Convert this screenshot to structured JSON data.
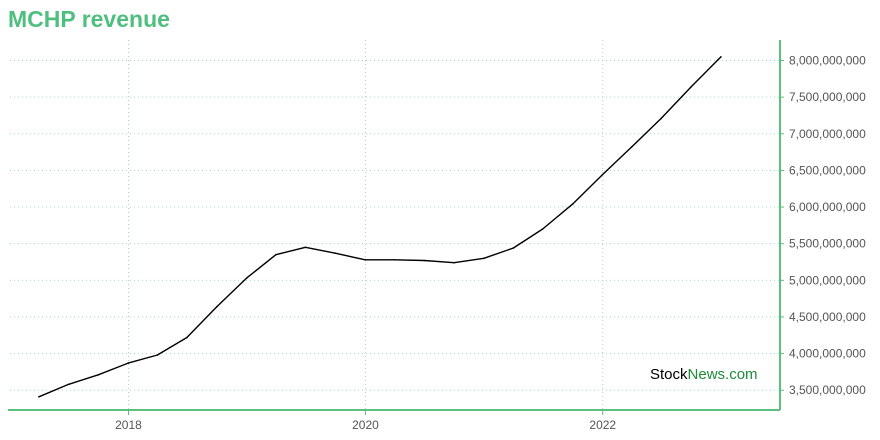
{
  "title": "MCHP revenue",
  "watermark": {
    "part1": "Stock",
    "part2": "News.com"
  },
  "colors": {
    "title": "#4fbf7f",
    "axis": "#5cbf7f",
    "grid": "#9fd9c6",
    "line": "#000000",
    "watermark_part1": "#000000",
    "watermark_part2": "#1f8a3a"
  },
  "chart_data": {
    "type": "line",
    "title": "MCHP revenue",
    "xlabel": "",
    "ylabel": "",
    "x": [
      "2017-03-31",
      "2017-06-30",
      "2017-09-30",
      "2017-12-31",
      "2018-03-31",
      "2018-06-30",
      "2018-09-30",
      "2018-12-31",
      "2019-03-31",
      "2019-06-30",
      "2019-09-30",
      "2019-12-31",
      "2020-03-31",
      "2020-06-30",
      "2020-09-30",
      "2020-12-31",
      "2021-03-31",
      "2021-06-30",
      "2021-09-30",
      "2021-12-31",
      "2022-03-31",
      "2022-06-30",
      "2022-09-30",
      "2022-12-31"
    ],
    "series": [
      {
        "values": [
          3410000000,
          3580000000,
          3710000000,
          3870000000,
          3980000000,
          4220000000,
          4640000000,
          5030000000,
          5350000000,
          5450000000,
          5370000000,
          5280000000,
          5280000000,
          5270000000,
          5240000000,
          5300000000,
          5440000000,
          5700000000,
          6040000000,
          6440000000,
          6820000000,
          7210000000,
          7640000000,
          8050000000
        ]
      }
    ],
    "xlim": [
      "2017-01-01",
      "2023-07-01"
    ],
    "ylim": [
      3230000000,
      8280000000
    ],
    "x_ticks": [
      "2018",
      "2020",
      "2022"
    ],
    "y_ticks": [
      {
        "value": 3500000000,
        "label": "3,500,000,000"
      },
      {
        "value": 4000000000,
        "label": "4,000,000,000"
      },
      {
        "value": 4500000000,
        "label": "4,500,000,000"
      },
      {
        "value": 5000000000,
        "label": "5,000,000,000"
      },
      {
        "value": 5500000000,
        "label": "5,500,000,000"
      },
      {
        "value": 6000000000,
        "label": "6,000,000,000"
      },
      {
        "value": 6500000000,
        "label": "6,500,000,000"
      },
      {
        "value": 7000000000,
        "label": "7,000,000,000"
      },
      {
        "value": 7500000000,
        "label": "7,500,000,000"
      },
      {
        "value": 8000000000,
        "label": "8,000,000,000"
      }
    ],
    "grid": true,
    "y_axis_position": "right",
    "legend": "none"
  }
}
